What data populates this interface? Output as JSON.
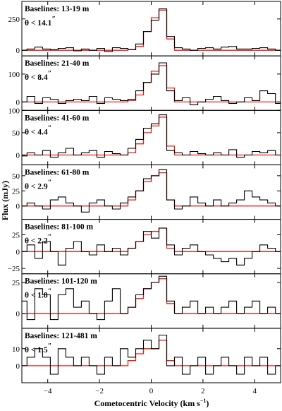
{
  "chart_data": {
    "type": "line",
    "xlabel": "Cometocentric Velocity (km s",
    "xlabel_sup": "−1",
    "xlabel_close": ")",
    "ylabel": "Flux (mJy)",
    "xlim": [
      -5,
      5
    ],
    "xticks": [
      -4,
      -2,
      0,
      2,
      4
    ],
    "xtick_labels": [
      "−4",
      "−2",
      "0",
      "2",
      "4"
    ],
    "x": [
      -4.95,
      -4.65,
      -4.35,
      -4.05,
      -3.75,
      -3.45,
      -3.15,
      -2.85,
      -2.55,
      -2.25,
      -1.95,
      -1.65,
      -1.35,
      -1.05,
      -0.75,
      -0.45,
      -0.15,
      0.15,
      0.45,
      0.75,
      1.05,
      1.35,
      1.65,
      1.95,
      2.25,
      2.55,
      2.85,
      3.15,
      3.45,
      3.75,
      4.05,
      4.35,
      4.65,
      4.95
    ],
    "panels": [
      {
        "label": "Baselines: 13-19 m",
        "theta": "θ < 14.1",
        "theta_unit": "″",
        "ylim": [
          -45,
          390
        ],
        "yticks": [
          0,
          250
        ],
        "ytick_labels": [
          "0",
          "250"
        ],
        "observed": [
          0,
          10,
          25,
          10,
          5,
          15,
          20,
          -5,
          10,
          0,
          15,
          -10,
          20,
          15,
          5,
          50,
          150,
          240,
          330,
          110,
          20,
          10,
          0,
          15,
          20,
          10,
          25,
          30,
          10,
          10,
          15,
          20,
          10,
          0
        ],
        "model": [
          0,
          0,
          0,
          0,
          0,
          0,
          0,
          0,
          0,
          0,
          0,
          0,
          0,
          0,
          5,
          30,
          150,
          260,
          320,
          90,
          0,
          0,
          0,
          0,
          0,
          0,
          0,
          0,
          0,
          0,
          0,
          0,
          0,
          0
        ]
      },
      {
        "label": "Baselines: 21-40 m",
        "theta": "θ < 8.4",
        "theta_unit": "″",
        "ylim": [
          -30,
          165
        ],
        "yticks": [
          0,
          100
        ],
        "ytick_labels": [
          "0",
          "100"
        ],
        "observed": [
          0,
          20,
          -5,
          15,
          10,
          -5,
          5,
          10,
          5,
          20,
          -5,
          15,
          10,
          5,
          10,
          40,
          70,
          100,
          140,
          40,
          5,
          15,
          -10,
          0,
          10,
          20,
          5,
          -5,
          0,
          15,
          5,
          40,
          30,
          -5
        ],
        "model": [
          0,
          0,
          0,
          0,
          0,
          0,
          0,
          0,
          0,
          0,
          0,
          0,
          0,
          0,
          5,
          25,
          70,
          110,
          130,
          50,
          0,
          0,
          0,
          0,
          0,
          0,
          0,
          0,
          0,
          0,
          0,
          0,
          0,
          0
        ]
      },
      {
        "label": "Baselines: 41-60 m",
        "theta": "θ < 4.4",
        "theta_unit": "″",
        "ylim": [
          -22,
          100
        ],
        "yticks": [
          0,
          50,
          100
        ],
        "ytick_labels": [
          "0",
          "50",
          "100"
        ],
        "observed": [
          -2,
          5,
          0,
          10,
          -5,
          5,
          15,
          0,
          5,
          10,
          -5,
          8,
          3,
          0,
          15,
          35,
          60,
          70,
          90,
          10,
          5,
          0,
          8,
          3,
          0,
          5,
          0,
          12,
          -5,
          0,
          8,
          5,
          10,
          0
        ],
        "model": [
          0,
          0,
          0,
          0,
          0,
          0,
          0,
          0,
          0,
          0,
          0,
          0,
          0,
          0,
          5,
          25,
          50,
          65,
          85,
          20,
          0,
          0,
          0,
          0,
          0,
          0,
          0,
          0,
          0,
          0,
          0,
          0,
          0,
          0
        ]
      },
      {
        "label": "Baselines: 61-80 m",
        "theta": "θ < 2.9",
        "theta_unit": "″",
        "ylim": [
          -22,
          68
        ],
        "yticks": [
          0,
          25,
          50
        ],
        "ytick_labels": [
          "0",
          "25",
          "50"
        ],
        "observed": [
          0,
          5,
          0,
          -5,
          10,
          15,
          5,
          0,
          -10,
          5,
          10,
          0,
          -5,
          5,
          15,
          25,
          45,
          50,
          60,
          10,
          -5,
          0,
          15,
          5,
          0,
          10,
          0,
          5,
          10,
          25,
          15,
          10,
          5,
          0
        ],
        "model": [
          0,
          0,
          0,
          0,
          0,
          0,
          0,
          0,
          0,
          0,
          0,
          0,
          0,
          0,
          10,
          25,
          40,
          50,
          55,
          10,
          0,
          0,
          0,
          0,
          0,
          0,
          0,
          0,
          0,
          0,
          0,
          0,
          0,
          0
        ]
      },
      {
        "label": "Baselines: 81-100 m",
        "theta": "θ < 2.2",
        "theta_unit": "″",
        "ylim": [
          -33,
          48
        ],
        "yticks": [
          -25,
          0,
          25
        ],
        "ytick_labels": [
          "−25",
          "0",
          "25"
        ],
        "observed": [
          0,
          10,
          -10,
          15,
          0,
          -20,
          5,
          15,
          0,
          -5,
          10,
          0,
          5,
          -5,
          5,
          15,
          30,
          20,
          35,
          10,
          -5,
          5,
          10,
          0,
          -5,
          -10,
          -15,
          -10,
          -20,
          -10,
          0,
          10,
          5,
          0
        ],
        "model": [
          0,
          0,
          0,
          0,
          0,
          0,
          0,
          0,
          0,
          0,
          0,
          0,
          0,
          0,
          5,
          15,
          25,
          30,
          35,
          5,
          0,
          0,
          0,
          0,
          0,
          0,
          0,
          0,
          0,
          0,
          0,
          0,
          0,
          0
        ]
      },
      {
        "label": "Baselines: 101-120 m",
        "theta": "θ < 1.8",
        "theta_unit": "″",
        "ylim": [
          -12,
          32
        ],
        "yticks": [
          0,
          25
        ],
        "ytick_labels": [
          "0",
          "25"
        ],
        "observed": [
          10,
          -5,
          20,
          15,
          -5,
          15,
          20,
          5,
          10,
          0,
          -5,
          10,
          20,
          0,
          5,
          15,
          20,
          25,
          30,
          10,
          0,
          5,
          10,
          0,
          5,
          0,
          5,
          10,
          0,
          5,
          10,
          0,
          5,
          0
        ],
        "model": [
          0,
          0,
          0,
          0,
          0,
          0,
          0,
          0,
          0,
          0,
          0,
          0,
          0,
          0,
          5,
          12,
          20,
          25,
          28,
          8,
          0,
          0,
          0,
          0,
          0,
          0,
          0,
          0,
          0,
          0,
          0,
          0,
          0,
          0
        ]
      },
      {
        "label": "Baselines: 121-481 m",
        "theta": "θ < 1.5",
        "theta_unit": "″",
        "ylim": [
          -10,
          22
        ],
        "yticks": [
          0,
          10
        ],
        "ytick_labels": [
          "0",
          "10"
        ],
        "observed": [
          0,
          5,
          10,
          5,
          -5,
          10,
          5,
          0,
          5,
          0,
          -5,
          5,
          0,
          10,
          5,
          10,
          15,
          10,
          18,
          0,
          5,
          -5,
          0,
          5,
          -5,
          0,
          5,
          0,
          -5,
          5,
          0,
          5,
          -5,
          0
        ],
        "model": [
          0,
          0,
          0,
          0,
          0,
          0,
          0,
          0,
          0,
          0,
          0,
          0,
          0,
          0,
          3,
          7,
          10,
          10,
          15,
          3,
          0,
          0,
          0,
          0,
          0,
          0,
          0,
          0,
          0,
          0,
          0,
          0,
          0,
          0
        ]
      }
    ],
    "colors": {
      "observed": "#000000",
      "model": "#e8211b"
    }
  }
}
